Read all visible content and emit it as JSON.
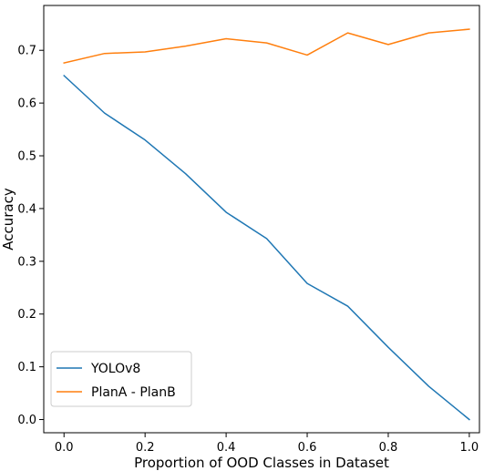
{
  "chart_data": {
    "type": "line",
    "title": "",
    "xlabel": "Proportion of OOD Classes in Dataset",
    "ylabel": "Accuracy",
    "xlim": [
      -0.05,
      1.025
    ],
    "ylim": [
      -0.025,
      0.785
    ],
    "xticks": [
      0.0,
      0.2,
      0.4,
      0.6,
      0.8,
      1.0
    ],
    "xtick_labels": [
      "0.0",
      "0.2",
      "0.4",
      "0.6",
      "0.8",
      "1.0"
    ],
    "yticks": [
      0.0,
      0.1,
      0.2,
      0.3,
      0.4,
      0.5,
      0.6,
      0.7
    ],
    "ytick_labels": [
      "0.0",
      "0.1",
      "0.2",
      "0.3",
      "0.4",
      "0.5",
      "0.6",
      "0.7"
    ],
    "grid": false,
    "legend_position": "bottom-left",
    "x": [
      0.0,
      0.1,
      0.2,
      0.3,
      0.4,
      0.5,
      0.6,
      0.7,
      0.8,
      0.9,
      1.0
    ],
    "series": [
      {
        "name": "YOLOv8",
        "color": "#1f77b4",
        "values": [
          0.652,
          0.581,
          0.53,
          0.466,
          0.393,
          0.343,
          0.258,
          0.215,
          0.137,
          0.063,
          0.0
        ]
      },
      {
        "name": "PlanA - PlanB",
        "color": "#ff7f0e",
        "values": [
          0.676,
          0.694,
          0.697,
          0.708,
          0.722,
          0.714,
          0.691,
          0.733,
          0.711,
          0.733,
          0.74
        ]
      }
    ]
  }
}
